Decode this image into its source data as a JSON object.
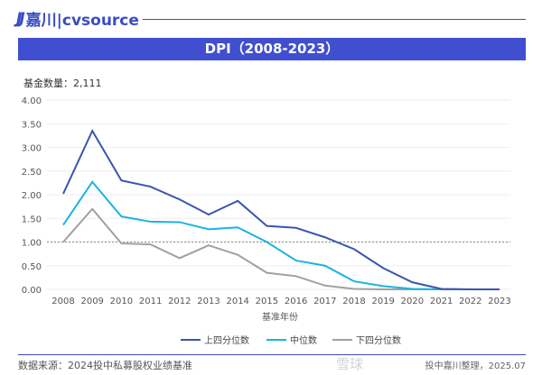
{
  "header": {
    "logo": "嘉川|cvsource",
    "logo_mark": "JJ",
    "title": "DPI（2008-2023）"
  },
  "fund_count": "基金数量：2,111",
  "footer": {
    "source": "数据来源：2024投中私募股权业绩基准",
    "credit": "投中嘉川整理，2025.07",
    "watermark": "雪球"
  },
  "chart_data": {
    "type": "line",
    "xlabel": "基准年份",
    "ylabel": "",
    "categories": [
      "2008",
      "2009",
      "2010",
      "2011",
      "2012",
      "2013",
      "2014",
      "2015",
      "2016",
      "2017",
      "2018",
      "2019",
      "2020",
      "2021",
      "2022",
      "2023"
    ],
    "ylim": [
      0,
      4
    ],
    "yticks": [
      "0.00",
      "0.50",
      "1.00",
      "1.50",
      "2.00",
      "2.50",
      "3.00",
      "3.50",
      "4.00"
    ],
    "reference_line": 1.0,
    "grid": true,
    "legend": "bottom",
    "series": [
      {
        "name": "上四分位数",
        "color": "#3a55b0",
        "values": [
          2.02,
          3.35,
          2.3,
          2.17,
          1.9,
          1.58,
          1.87,
          1.34,
          1.3,
          1.1,
          0.85,
          0.45,
          0.15,
          0.01,
          0,
          0
        ]
      },
      {
        "name": "中位数",
        "color": "#1bb3e3",
        "values": [
          1.36,
          2.27,
          1.54,
          1.43,
          1.42,
          1.27,
          1.31,
          1.0,
          0.61,
          0.5,
          0.17,
          0.07,
          0.01,
          0,
          0,
          0
        ]
      },
      {
        "name": "下四分位数",
        "color": "#a0a0a0",
        "values": [
          1.0,
          1.7,
          0.97,
          0.95,
          0.66,
          0.93,
          0.73,
          0.35,
          0.28,
          0.08,
          0.01,
          0,
          0,
          0,
          0,
          0
        ]
      }
    ]
  }
}
